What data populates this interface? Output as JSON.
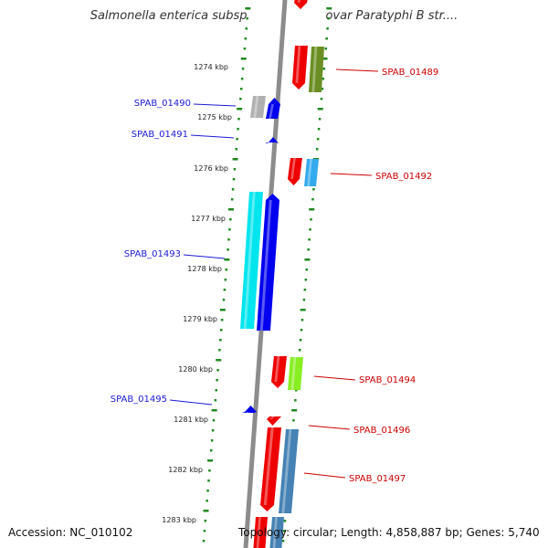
{
  "title": "Salmonella enterica subsp. enterica serovar Paratyphi B str....",
  "footer": {
    "accession": "Accession: NC_010102",
    "topology": "Topology: circular; Length: 4,858,887 bp; Genes: 5,740"
  },
  "colors": {
    "backbone": "#8c8c8c",
    "dots": "#1f8a1f",
    "left_label": "#1a1ad6",
    "right_label": "#cc0000"
  },
  "ruler": [
    {
      "label": "1274 kbp"
    },
    {
      "label": "1275 kbp"
    },
    {
      "label": "1276 kbp"
    },
    {
      "label": "1277 kbp"
    },
    {
      "label": "1278 kbp"
    },
    {
      "label": "1279 kbp"
    },
    {
      "label": "1280 kbp"
    },
    {
      "label": "1281 kbp"
    },
    {
      "label": "1282 kbp"
    },
    {
      "label": "1283 kbp"
    }
  ],
  "gene_labels": [
    {
      "name": "SPAB_01489",
      "side": "right"
    },
    {
      "name": "SPAB_01490",
      "side": "left"
    },
    {
      "name": "SPAB_01491",
      "side": "left"
    },
    {
      "name": "SPAB_01492",
      "side": "right"
    },
    {
      "name": "SPAB_01493",
      "side": "left"
    },
    {
      "name": "SPAB_01494",
      "side": "right"
    },
    {
      "name": "SPAB_01495",
      "side": "left"
    },
    {
      "name": "SPAB_01496",
      "side": "right"
    },
    {
      "name": "SPAB_01497",
      "side": "right"
    }
  ]
}
